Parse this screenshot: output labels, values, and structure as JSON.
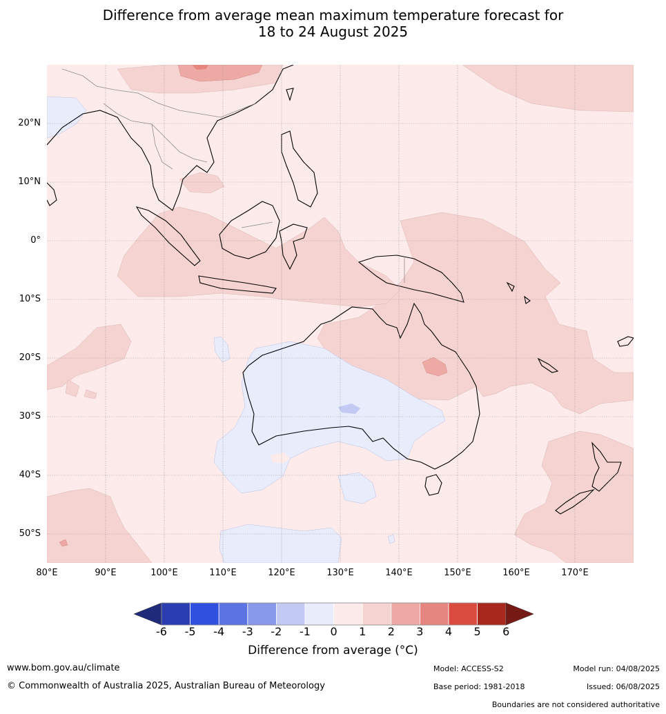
{
  "title": {
    "line1": "Difference from average mean maximum temperature forecast for",
    "line2": "18 to 24 August 2025"
  },
  "map": {
    "lat_labels": [
      "20°N",
      "10°N",
      "0°",
      "10°S",
      "20°S",
      "30°S",
      "40°S",
      "50°S"
    ],
    "lon_labels": [
      "80°E",
      "90°E",
      "100°E",
      "110°E",
      "120°E",
      "130°E",
      "140°E",
      "150°E",
      "160°E",
      "170°E"
    ],
    "extent": {
      "lon_min": 80,
      "lon_max": 180,
      "lat_min": -55,
      "lat_max": 30
    }
  },
  "legend": {
    "ticks": [
      "-6",
      "-5",
      "-4",
      "-3",
      "-2",
      "-1",
      "0",
      "1",
      "2",
      "3",
      "4",
      "5",
      "6"
    ],
    "colors": [
      "#1f2a7a",
      "#2a3eb1",
      "#3050e0",
      "#5b73e3",
      "#8899ea",
      "#c2c9f3",
      "#e8ecfb",
      "#fcebea",
      "#f5d3d1",
      "#edaaa5",
      "#e58680",
      "#da4c40",
      "#a8281e",
      "#761a16"
    ],
    "label": "Difference from average ($^\\circ$C)",
    "label_display": "Difference from average (°C)"
  },
  "footer": {
    "website": "www.bom.gov.au/climate",
    "copyright": "© Commonwealth of Australia 2025, Australian Bureau of Meteorology",
    "model": "Model: ACCESS-S2",
    "base_period": "Base period: 1981-2018",
    "model_run": "Model run: 04/08/2025",
    "issued": "Issued: 06/08/2025",
    "disclaimer": "Boundaries are not considered authoritative"
  }
}
